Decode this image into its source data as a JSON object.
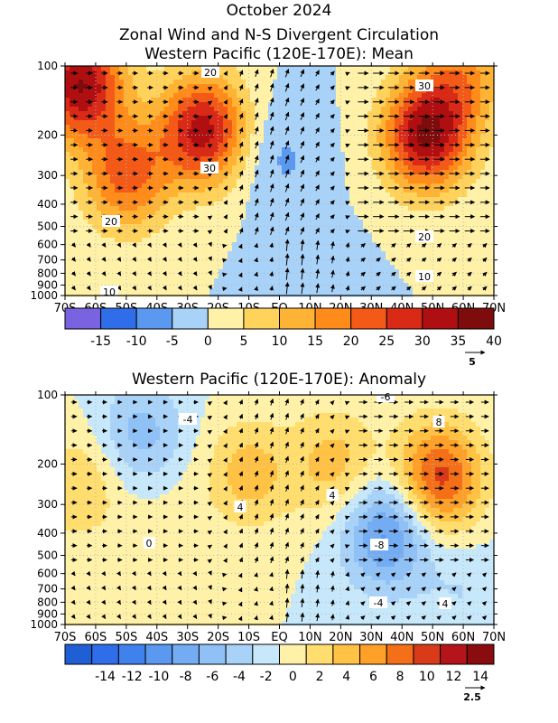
{
  "figure": {
    "title": "October 2024"
  },
  "chart_data": [
    {
      "type": "heatmap",
      "title": "Zonal Wind and N-S Divergent Circulation",
      "subtitle": "Western Pacific (120E-170E): Mean",
      "x_tick_labels": [
        "70S",
        "60S",
        "50S",
        "40S",
        "30S",
        "20S",
        "10S",
        "EQ",
        "10N",
        "20N",
        "30N",
        "40N",
        "50N",
        "60N",
        "70N"
      ],
      "x_range": [
        -70,
        70
      ],
      "y_tick_labels": [
        "100",
        "200",
        "300",
        "400",
        "500",
        "600",
        "700",
        "800",
        "900",
        "1000"
      ],
      "y_ticks": [
        100,
        200,
        300,
        400,
        500,
        600,
        700,
        800,
        900,
        1000
      ],
      "y_range": [
        1000,
        100
      ],
      "y_scale": "log",
      "colorbar_levels": [
        "-15",
        "-10",
        "-5",
        "0",
        "5",
        "10",
        "15",
        "20",
        "25",
        "30",
        "35",
        "40"
      ],
      "colorbar_colors": [
        "#7a63e0",
        "#2f6ee8",
        "#5b98f0",
        "#a8d2f7",
        "#fff2a8",
        "#ffd25c",
        "#ffb334",
        "#ff8c1a",
        "#f35a17",
        "#d92a17",
        "#b00f12",
        "#7f0c0c"
      ],
      "contour_labels": [
        "20",
        "30",
        "20",
        "30",
        "20",
        "10",
        "10"
      ],
      "vector_reference": "5",
      "centers": [
        {
          "lat": -65,
          "p": 120,
          "value": 35
        },
        {
          "lat": -50,
          "p": 300,
          "value": 22
        },
        {
          "lat": -25,
          "p": 190,
          "value": 32
        },
        {
          "lat": 0,
          "p": 250,
          "value": -6
        },
        {
          "lat": 10,
          "p": 850,
          "value": -3
        },
        {
          "lat": 48,
          "p": 200,
          "value": 35
        },
        {
          "lat": 60,
          "p": 110,
          "value": 15
        }
      ]
    },
    {
      "type": "heatmap",
      "title": "Western Pacific (120E-170E): Anomaly",
      "x_tick_labels": [
        "70S",
        "60S",
        "50S",
        "40S",
        "30S",
        "20S",
        "10S",
        "EQ",
        "10N",
        "20N",
        "30N",
        "40N",
        "50N",
        "60N",
        "70N"
      ],
      "x_range": [
        -70,
        70
      ],
      "y_tick_labels": [
        "100",
        "200",
        "300",
        "400",
        "500",
        "600",
        "700",
        "800",
        "900",
        "1000"
      ],
      "y_ticks": [
        100,
        200,
        300,
        400,
        500,
        600,
        700,
        800,
        900,
        1000
      ],
      "y_range": [
        1000,
        100
      ],
      "y_scale": "log",
      "colorbar_levels": [
        "-14",
        "-12",
        "-10",
        "-8",
        "-6",
        "-4",
        "-2",
        "0",
        "2",
        "4",
        "6",
        "8",
        "10",
        "12",
        "14"
      ],
      "colorbar_colors": [
        "#1f5fd6",
        "#2f6ee8",
        "#3f82ee",
        "#5b98f0",
        "#73acf3",
        "#8fc1f6",
        "#a8d2f7",
        "#c7e8fa",
        "#fff2a8",
        "#ffdd6e",
        "#ffc244",
        "#ffa128",
        "#f37018",
        "#d93a18",
        "#b4141a",
        "#8a0c0f"
      ],
      "contour_labels": [
        "-6",
        "-4",
        "8",
        "4",
        "4",
        "0",
        "-8",
        "-4",
        "4"
      ],
      "vector_reference": "2.5",
      "centers": [
        {
          "lat": -65,
          "p": 250,
          "value": 4
        },
        {
          "lat": -45,
          "p": 150,
          "value": -5
        },
        {
          "lat": -38,
          "p": 300,
          "value": 1
        },
        {
          "lat": -10,
          "p": 220,
          "value": 5
        },
        {
          "lat": 18,
          "p": 200,
          "value": 5
        },
        {
          "lat": 35,
          "p": 400,
          "value": -9
        },
        {
          "lat": 52,
          "p": 230,
          "value": 11
        },
        {
          "lat": 60,
          "p": 700,
          "value": -2
        }
      ]
    }
  ]
}
